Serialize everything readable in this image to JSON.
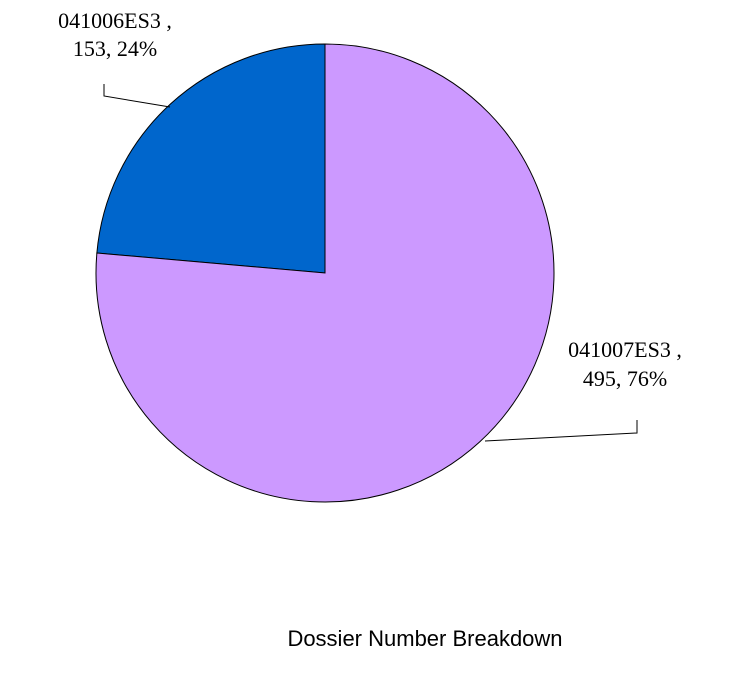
{
  "chart_data": {
    "type": "pie",
    "title": "Dossier Number Breakdown",
    "categories": [
      "041006ES3 ,",
      "041007ES3 ,"
    ],
    "values": [
      153,
      495
    ],
    "value_labels": [
      "153, 24%",
      "495, 76%"
    ],
    "colors": [
      "#0066cc",
      "#cc99ff"
    ]
  }
}
